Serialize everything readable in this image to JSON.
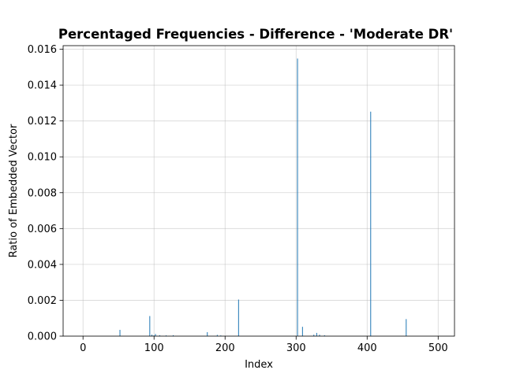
{
  "chart_data": {
    "type": "bar",
    "title": "Percentaged Frequencies - Difference - 'Moderate DR'",
    "xlabel": "Index",
    "ylabel": "Ratio of Embedded Vector",
    "xlim": [
      -28,
      523
    ],
    "ylim": [
      0,
      0.0162
    ],
    "xticks": [
      0,
      100,
      200,
      300,
      400,
      500
    ],
    "yticks": [
      0.0,
      0.002,
      0.004,
      0.006,
      0.008,
      0.01,
      0.012,
      0.014,
      0.016
    ],
    "xtick_labels": [
      "0",
      "100",
      "200",
      "300",
      "400",
      "500"
    ],
    "ytick_labels": [
      "0.000",
      "0.002",
      "0.004",
      "0.006",
      "0.008",
      "0.010",
      "0.012",
      "0.014",
      "0.016"
    ],
    "grid": true,
    "bar_color": "#1f77b4",
    "x": [
      52,
      94,
      97,
      100,
      102,
      108,
      117,
      127,
      175,
      189,
      194,
      219,
      302,
      309,
      325,
      329,
      333,
      340,
      405,
      455
    ],
    "values": [
      0.00035,
      0.00112,
      8e-05,
      4e-05,
      0.00012,
      5e-05,
      4e-05,
      5e-05,
      0.00022,
      7e-05,
      4e-05,
      0.00204,
      0.01548,
      0.00052,
      8e-05,
      0.00018,
      8e-05,
      5e-05,
      0.01252,
      0.00095
    ]
  }
}
